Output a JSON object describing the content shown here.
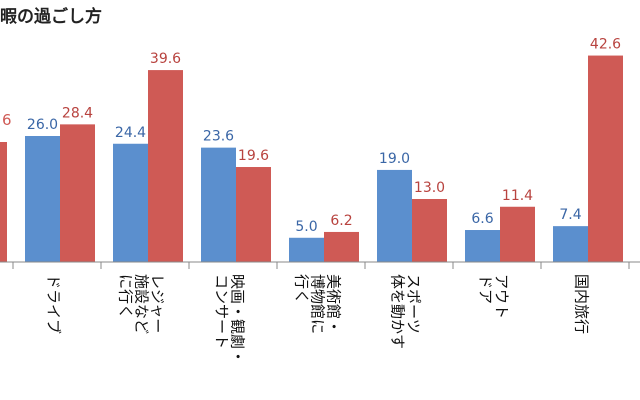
{
  "chart_data": {
    "type": "bar",
    "title": "暇の過ごし方",
    "categories": [
      {
        "label_lines": [
          "ドライブ"
        ]
      },
      {
        "label_lines": [
          "レジャー",
          "施設など",
          "に行く"
        ]
      },
      {
        "label_lines": [
          "映画・観劇・",
          "コンサート"
        ]
      },
      {
        "label_lines": [
          "美術館・",
          "博物館に",
          "行く"
        ]
      },
      {
        "label_lines": [
          "スポーツ",
          "体を動かす"
        ]
      },
      {
        "label_lines": [
          "アウト",
          "ドア"
        ]
      },
      {
        "label_lines": [
          "国内旅行"
        ]
      }
    ],
    "series": [
      {
        "color": "#5b8fce",
        "label_color": "#3a66a6",
        "values": [
          26.0,
          24.4,
          23.6,
          5.0,
          19.0,
          6.6,
          7.4
        ]
      },
      {
        "color": "#cf5a55",
        "label_color": "#b8433f",
        "values": [
          28.4,
          39.6,
          19.6,
          6.2,
          13.0,
          11.4,
          42.6
        ]
      }
    ],
    "value_labels": [
      [
        "26.0",
        "24.4",
        "23.6",
        "5.0",
        "19.0",
        "6.6",
        "7.4"
      ],
      [
        "28.4",
        "39.6",
        "19.6",
        "6.2",
        "13.0",
        "11.4",
        "42.6"
      ]
    ],
    "partial_left": {
      "value_label": "6",
      "color": "#cf5a55"
    },
    "ylim": [
      0,
      52
    ],
    "grid": false,
    "legend": "none"
  }
}
